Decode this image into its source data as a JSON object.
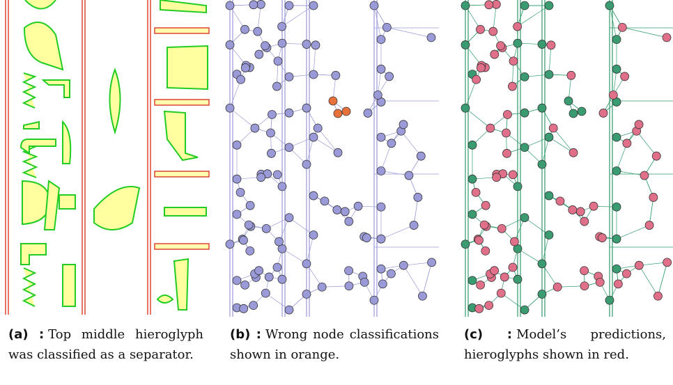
{
  "figure": {
    "subfigures": [
      {
        "label": "(a) :",
        "caption": "Top middle hieroglyph was classified as a separator."
      },
      {
        "label": "(b) :",
        "caption": "Wrong node classifications shown in orange."
      },
      {
        "label": "(c) :",
        "caption": "Model’s predictions, hieroglyphs shown in red."
      }
    ]
  }
}
